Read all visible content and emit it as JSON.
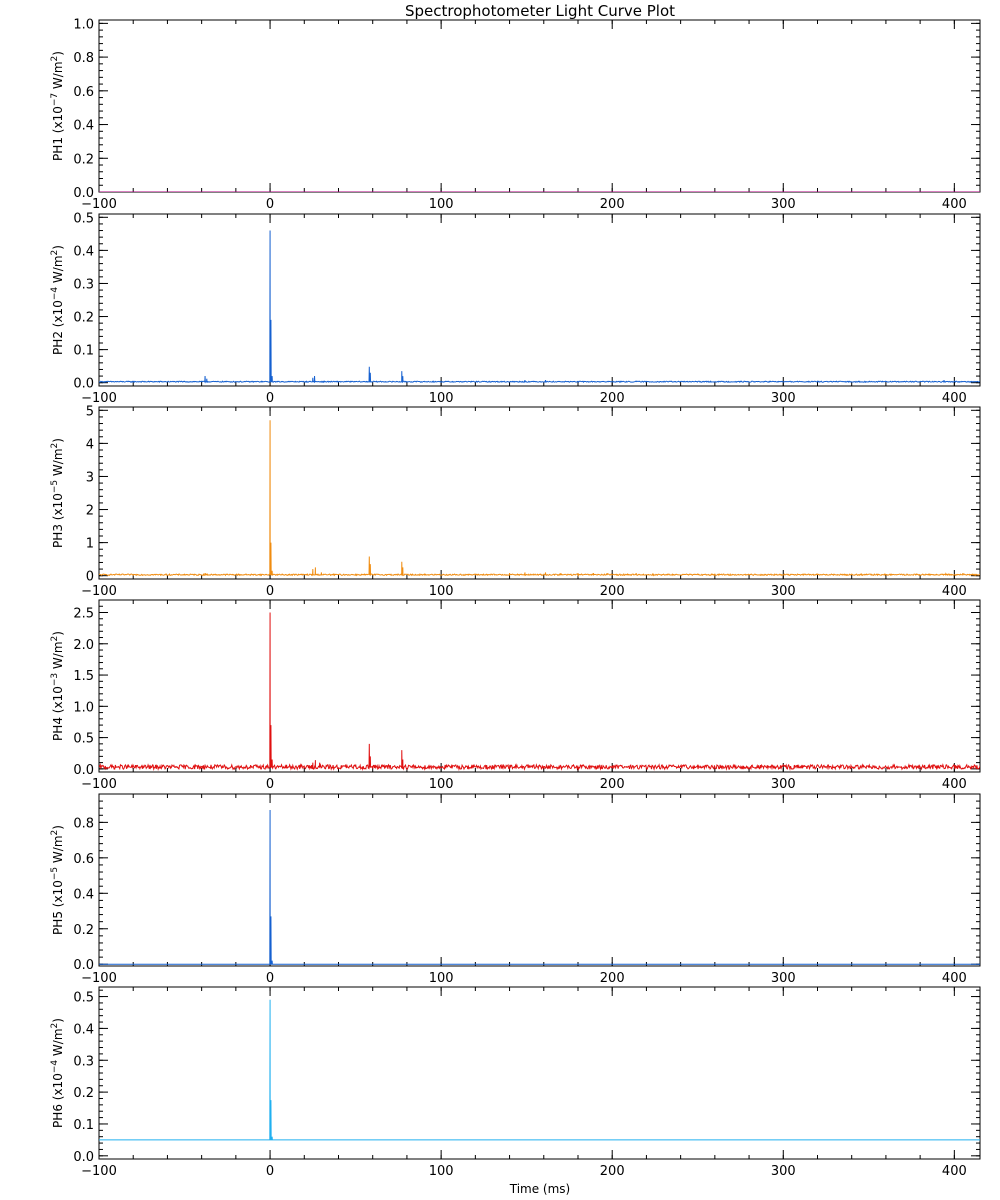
{
  "window": {
    "title": "Spectrophotometer Light Curve Plot"
  },
  "chart_data": {
    "type": "line",
    "title": "Spectrophotometer Light Curve Plot",
    "xlabel": "Time (ms)",
    "xlim": [
      -100,
      415
    ],
    "x_ticks": [
      -100,
      0,
      100,
      200,
      300,
      400
    ],
    "x_tick_labels": [
      "−100",
      "0",
      "100",
      "200",
      "300",
      "400"
    ],
    "panels": [
      {
        "name": "PH1",
        "ylabel_parts": {
          "name": "PH1",
          "prefix": "(x10",
          "exp": "−7",
          "unit": " W/m",
          "unit_exp": "2",
          "close": ")"
        },
        "ylim": [
          0.0,
          1.02
        ],
        "y_ticks": [
          0.0,
          0.2,
          0.4,
          0.6,
          0.8,
          1.0
        ],
        "y_tick_labels": [
          "0.0",
          "0.2",
          "0.4",
          "0.6",
          "0.8",
          "1.0"
        ],
        "color": "#b00080",
        "baseline": 0.0,
        "noise": 0.0,
        "spikes": []
      },
      {
        "name": "PH2",
        "ylabel_parts": {
          "name": "PH2",
          "prefix": "(x10",
          "exp": "−4",
          "unit": " W/m",
          "unit_exp": "2",
          "close": ")"
        },
        "ylim": [
          -0.01,
          0.51
        ],
        "y_ticks": [
          0.0,
          0.1,
          0.2,
          0.3,
          0.4,
          0.5
        ],
        "y_tick_labels": [
          "0.0",
          "0.1",
          "0.2",
          "0.3",
          "0.4",
          "0.5"
        ],
        "color": "#1560d0",
        "baseline": 0.003,
        "noise": 0.0015,
        "spikes": [
          {
            "x": -38.0,
            "y": 0.02
          },
          {
            "x": -37.0,
            "y": 0.012
          },
          {
            "x": 0.0,
            "y": 0.46
          },
          {
            "x": 0.5,
            "y": 0.19
          },
          {
            "x": 1.2,
            "y": 0.02
          },
          {
            "x": 25.0,
            "y": 0.015
          },
          {
            "x": 26.0,
            "y": 0.02
          },
          {
            "x": 58.0,
            "y": 0.048
          },
          {
            "x": 58.6,
            "y": 0.03
          },
          {
            "x": 77.0,
            "y": 0.035
          },
          {
            "x": 77.6,
            "y": 0.02
          },
          {
            "x": 149.0,
            "y": 0.008
          },
          {
            "x": 161.0,
            "y": 0.008
          },
          {
            "x": 214.0,
            "y": 0.006
          },
          {
            "x": 394.0,
            "y": 0.008
          }
        ]
      },
      {
        "name": "PH3",
        "ylabel_parts": {
          "name": "PH3",
          "prefix": "(x10",
          "exp": "−5",
          "unit": " W/m",
          "unit_exp": "2",
          "close": ")"
        },
        "ylim": [
          -0.1,
          5.1
        ],
        "y_ticks": [
          0,
          1,
          2,
          3,
          4,
          5
        ],
        "y_tick_labels": [
          "0",
          "1",
          "2",
          "3",
          "4",
          "5"
        ],
        "color": "#f08c10",
        "baseline": 0.03,
        "noise": 0.02,
        "spikes": [
          {
            "x": -38.0,
            "y": 0.08
          },
          {
            "x": 0.0,
            "y": 4.7
          },
          {
            "x": 0.5,
            "y": 1.0
          },
          {
            "x": 1.2,
            "y": 0.15
          },
          {
            "x": 25.0,
            "y": 0.2
          },
          {
            "x": 26.5,
            "y": 0.25
          },
          {
            "x": 30.0,
            "y": 0.1
          },
          {
            "x": 58.0,
            "y": 0.58
          },
          {
            "x": 58.6,
            "y": 0.35
          },
          {
            "x": 77.0,
            "y": 0.42
          },
          {
            "x": 77.6,
            "y": 0.25
          },
          {
            "x": 140.0,
            "y": 0.08
          },
          {
            "x": 149.0,
            "y": 0.1
          },
          {
            "x": 161.0,
            "y": 0.1
          },
          {
            "x": 170.0,
            "y": 0.08
          },
          {
            "x": 180.0,
            "y": 0.08
          },
          {
            "x": 189.0,
            "y": 0.08
          },
          {
            "x": 197.0,
            "y": 0.08
          },
          {
            "x": 214.0,
            "y": 0.08
          },
          {
            "x": 224.0,
            "y": 0.06
          },
          {
            "x": 260.0,
            "y": 0.06
          },
          {
            "x": 395.0,
            "y": 0.06
          },
          {
            "x": 405.0,
            "y": 0.08
          }
        ]
      },
      {
        "name": "PH4",
        "ylabel_parts": {
          "name": "PH4",
          "prefix": "(x10",
          "exp": "−3",
          "unit": " W/m",
          "unit_exp": "2",
          "close": ")"
        },
        "ylim": [
          -0.05,
          2.7
        ],
        "y_ticks": [
          0.0,
          0.5,
          1.0,
          1.5,
          2.0,
          2.5
        ],
        "y_tick_labels": [
          "0.0",
          "0.5",
          "1.0",
          "1.5",
          "2.0",
          "2.5"
        ],
        "color": "#e01010",
        "baseline": 0.03,
        "noise": 0.035,
        "spikes": [
          {
            "x": -38.0,
            "y": 0.07
          },
          {
            "x": 0.0,
            "y": 2.5
          },
          {
            "x": 0.5,
            "y": 0.7
          },
          {
            "x": 1.2,
            "y": 0.15
          },
          {
            "x": 25.0,
            "y": 0.1
          },
          {
            "x": 26.5,
            "y": 0.14
          },
          {
            "x": 29.0,
            "y": 0.1
          },
          {
            "x": 58.0,
            "y": 0.4
          },
          {
            "x": 58.6,
            "y": 0.2
          },
          {
            "x": 77.0,
            "y": 0.3
          },
          {
            "x": 77.6,
            "y": 0.15
          }
        ]
      },
      {
        "name": "PH5",
        "ylabel_parts": {
          "name": "PH5",
          "prefix": "(x10",
          "exp": "−5",
          "unit": " W/m",
          "unit_exp": "2",
          "close": ")"
        },
        "ylim": [
          -0.01,
          0.96
        ],
        "y_ticks": [
          0.0,
          0.2,
          0.4,
          0.6,
          0.8
        ],
        "y_tick_labels": [
          "0.0",
          "0.2",
          "0.4",
          "0.6",
          "0.8"
        ],
        "color": "#1560d0",
        "baseline": 0.0,
        "noise": 0.0,
        "spikes": [
          {
            "x": 0.0,
            "y": 0.87
          },
          {
            "x": 0.5,
            "y": 0.27
          },
          {
            "x": 1.2,
            "y": 0.02
          }
        ]
      },
      {
        "name": "PH6",
        "ylabel_parts": {
          "name": "PH6",
          "prefix": "(x10",
          "exp": "−4",
          "unit": " W/m",
          "unit_exp": "2",
          "close": ")"
        },
        "ylim": [
          -0.01,
          0.53
        ],
        "y_ticks": [
          0.0,
          0.1,
          0.2,
          0.3,
          0.4,
          0.5
        ],
        "y_tick_labels": [
          "0.0",
          "0.1",
          "0.2",
          "0.3",
          "0.4",
          "0.5"
        ],
        "color": "#20b0f0",
        "baseline": 0.05,
        "noise": 0.0,
        "spikes": [
          {
            "x": 0.0,
            "y": 0.49
          },
          {
            "x": 0.5,
            "y": 0.175
          },
          {
            "x": 1.2,
            "y": 0.06
          }
        ]
      }
    ]
  }
}
